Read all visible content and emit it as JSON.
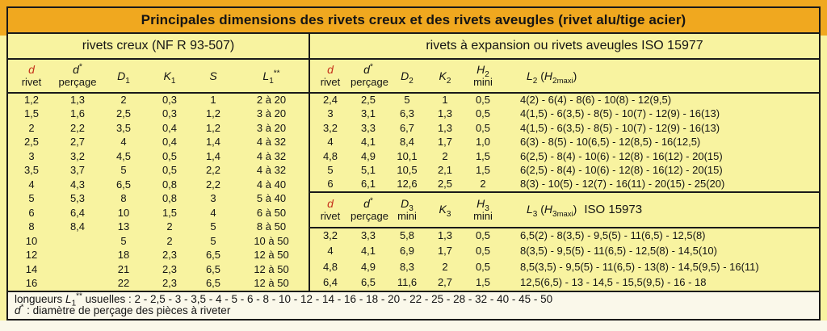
{
  "title": "Principales dimensions des rivets creux et des rivets aveugles (rivet alu/tige acier)",
  "colors": {
    "title_bg": "#F0A81F",
    "body_bg": "#F8F3A0",
    "footer_bg": "#FAF8EA",
    "border": "#1a1a1a",
    "accent_red": "#C4301B"
  },
  "left": {
    "section_title": "rivets creux (NF R 93-507)",
    "header": {
      "d": "d",
      "d_label": "rivet",
      "ds": "d",
      "ds_sup": "*",
      "ds_label": "perçage",
      "D": "D",
      "D_sub": "1",
      "K": "K",
      "K_sub": "1",
      "S": "S",
      "L": "L",
      "L_sub": "1",
      "L_sup": "**"
    },
    "rows": [
      [
        "1,2",
        "1,3",
        "2",
        "0,3",
        "1",
        "2 à 20"
      ],
      [
        "1,5",
        "1,6",
        "2,5",
        "0,3",
        "1,2",
        "3 à 20"
      ],
      [
        "2",
        "2,2",
        "3,5",
        "0,4",
        "1,2",
        "3 à 20"
      ],
      [
        "2,5",
        "2,7",
        "4",
        "0,4",
        "1,4",
        "4 à 32"
      ],
      [
        "3",
        "3,2",
        "4,5",
        "0,5",
        "1,4",
        "4 à 32"
      ],
      [
        "3,5",
        "3,7",
        "5",
        "0,5",
        "2,2",
        "4 à 32"
      ],
      [
        "4",
        "4,3",
        "6,5",
        "0,8",
        "2,2",
        "4 à 40"
      ],
      [
        "5",
        "5,3",
        "8",
        "0,8",
        "3",
        "5 à 40"
      ],
      [
        "6",
        "6,4",
        "10",
        "1,5",
        "4",
        "6 à 50"
      ],
      [
        "8",
        "8,4",
        "13",
        "2",
        "5",
        "8 à 50"
      ],
      [
        "10",
        "",
        "5",
        "2",
        "5",
        "10 à 50"
      ],
      [
        "12",
        "",
        "18",
        "2,3",
        "6,5",
        "12 à 50"
      ],
      [
        "14",
        "",
        "21",
        "2,3",
        "6,5",
        "12 à 50"
      ],
      [
        "16",
        "",
        "22",
        "2,3",
        "6,5",
        "12 à 50"
      ]
    ]
  },
  "right": {
    "section_title": "rivets à expansion ou rivets aveugles ISO 15977",
    "iso15977_header": {
      "d": "d",
      "d_label": "rivet",
      "ds": "d",
      "ds_sup": "*",
      "ds_label": "perçage",
      "D": "D",
      "D_sub": "2",
      "K": "K",
      "K_sub": "2",
      "H": "H",
      "H_sub": "2",
      "H_label": "mini",
      "L": "L",
      "L_sub": "2",
      "L_open": " (",
      "LH": "H",
      "LH_sub": "2",
      "LH_maxi": "maxi",
      "L_close": ")"
    },
    "iso15977_rows": [
      [
        "2,4",
        "2,5",
        "5",
        "1",
        "0,5",
        "4(2) - 6(4) - 8(6) - 10(8) - 12(9,5)"
      ],
      [
        "3",
        "3,1",
        "6,3",
        "1,3",
        "0,5",
        "4(1,5) - 6(3,5) - 8(5) - 10(7) - 12(9) - 16(13)"
      ],
      [
        "3,2",
        "3,3",
        "6,7",
        "1,3",
        "0,5",
        "4(1,5) - 6(3,5) - 8(5) - 10(7) - 12(9) - 16(13)"
      ],
      [
        "4",
        "4,1",
        "8,4",
        "1,7",
        "1,0",
        "6(3) - 8(5) - 10(6,5) - 12(8,5) - 16(12,5)"
      ],
      [
        "4,8",
        "4,9",
        "10,1",
        "2",
        "1,5",
        "6(2,5) - 8(4) - 10(6) - 12(8) - 16(12) - 20(15)"
      ],
      [
        "5",
        "5,1",
        "10,5",
        "2,1",
        "1,5",
        "6(2,5) - 8(4) - 10(6) - 12(8) - 16(12) - 20(15)"
      ],
      [
        "6",
        "6,1",
        "12,6",
        "2,5",
        "2",
        "8(3) - 10(5) - 12(7) - 16(11) - 20(15) - 25(20)"
      ]
    ],
    "iso15973_header": {
      "d": "d",
      "d_label": "rivet",
      "ds": "d",
      "ds_sup": "*",
      "ds_label": "perçage",
      "D": "D",
      "D_sub": "3",
      "D_label": "mini",
      "K": "K",
      "K_sub": "3",
      "H": "H",
      "H_sub": "3",
      "H_label": "mini",
      "L": "L",
      "L_sub": "3",
      "L_open": " (",
      "LH": "H",
      "LH_sub": "3",
      "LH_maxi": "maxi",
      "L_close": ")",
      "iso_label": "ISO 15973"
    },
    "iso15973_rows": [
      [
        "3,2",
        "3,3",
        "5,8",
        "1,3",
        "0,5",
        "6,5(2) - 8(3,5) - 9,5(5) - 11(6,5) - 12,5(8)"
      ],
      [
        "4",
        "4,1",
        "6,9",
        "1,7",
        "0,5",
        "8(3,5) - 9,5(5) - 11(6,5) - 12,5(8) - 14,5(10)"
      ],
      [
        "4,8",
        "4,9",
        "8,3",
        "2",
        "0,5",
        "8,5(3,5) - 9,5(5) - 11(6,5) - 13(8) - 14,5(9,5) - 16(11)"
      ],
      [
        "6,4",
        "6,5",
        "11,6",
        "2,7",
        "1,5",
        "12,5(6,5) - 13 - 14,5 - 15,5(9,5) - 16 - 18"
      ]
    ]
  },
  "footer": {
    "line1_word": "longueurs ",
    "line1_L": "L",
    "line1_L_sub": "1",
    "line1_sup": "**",
    "line1_rest": " usuelles : 2 - 2,5 - 3 - 3,5 - 4 - 5 - 6 - 8 - 10 - 12 - 14 - 16 - 18 - 20 - 22 - 25 - 28 - 32 - 40 - 45 - 50",
    "line2_d": "d",
    "line2_sup": "*",
    "line2_rest": " : diamètre de perçage des pièces à riveter"
  }
}
